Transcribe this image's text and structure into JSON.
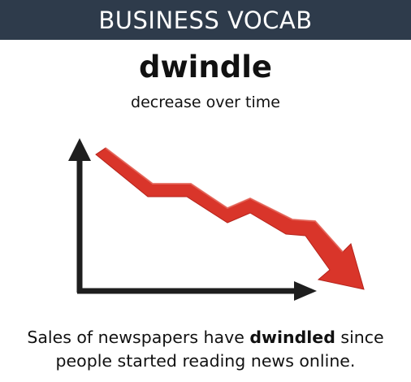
{
  "header": {
    "title": "BUSINESS VOCAB"
  },
  "vocab": {
    "word": "dwindle",
    "definition": "decrease over time"
  },
  "example": {
    "before": "Sales of newspapers have ",
    "highlight": "dwindled",
    "after": " since people started reading news online."
  },
  "illustration": {
    "icon": "declining-line-chart-icon",
    "trend": "declining",
    "colors": {
      "trend_line": "#d9352a",
      "axes": "#1e1e1e",
      "grid": "#a9a9a9"
    }
  },
  "colors": {
    "banner_bg": "#2e3b4b",
    "banner_text": "#ffffff",
    "body_text": "#111111"
  }
}
